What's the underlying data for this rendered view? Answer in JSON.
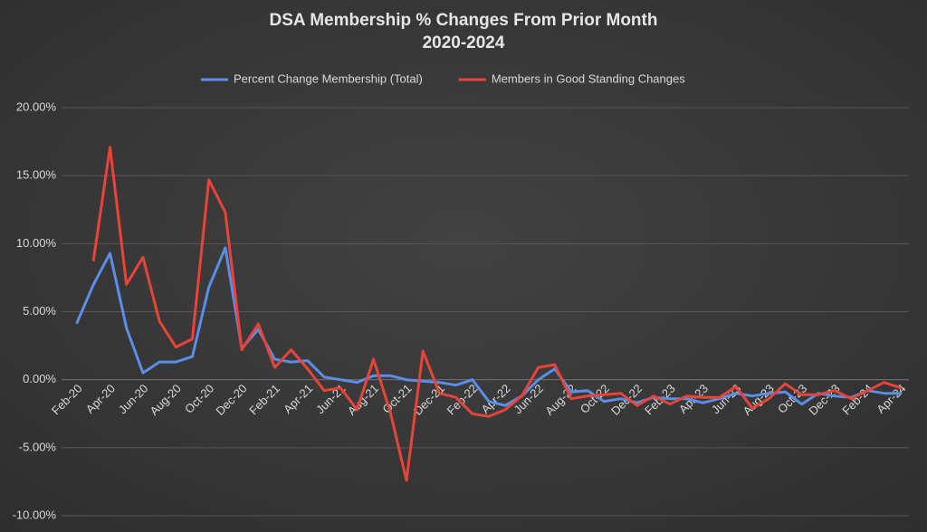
{
  "chart_data": {
    "type": "line",
    "title": "DSA Membership % Changes From Prior Month",
    "subtitle": "2020-2024",
    "categories": [
      "Feb-20",
      null,
      "Apr-20",
      null,
      "Jun-20",
      null,
      "Aug-20",
      null,
      "Oct-20",
      null,
      "Dec-20",
      null,
      "Feb-21",
      null,
      "Apr-21",
      null,
      "Jun-21",
      null,
      "Aug-21",
      null,
      "Oct-21",
      null,
      "Dec-21",
      null,
      "Feb-22",
      null,
      "Apr-22",
      null,
      "Jun-22",
      null,
      "Aug-22",
      null,
      "Oct-22",
      null,
      "Dec-22",
      null,
      "Feb-23",
      null,
      "Apr-23",
      null,
      "Jun-23",
      null,
      "Aug-23",
      null,
      "Oct-23",
      null,
      "Dec-23",
      null,
      "Feb-24",
      null,
      "Apr-24"
    ],
    "series": [
      {
        "name": "Percent Change Membership (Total)",
        "color": "#5b8ee6",
        "values": [
          4.2,
          7.0,
          9.3,
          3.8,
          0.5,
          1.3,
          1.3,
          1.7,
          6.8,
          9.7,
          2.3,
          3.7,
          1.5,
          1.3,
          1.4,
          0.2,
          0.0,
          -0.2,
          0.3,
          0.3,
          0.0,
          -0.1,
          -0.2,
          -0.4,
          0.0,
          -1.6,
          -1.9,
          -1.2,
          0.0,
          0.8,
          -0.9,
          -0.8,
          -1.6,
          -1.4,
          -1.7,
          -1.3,
          -1.4,
          -1.4,
          -1.7,
          -1.4,
          -1.0,
          -1.2,
          -1.0,
          -0.9,
          -1.8,
          -1.0,
          -1.2,
          -1.3,
          -0.8,
          -1.0,
          -1.0
        ]
      },
      {
        "name": "Members in Good Standing Changes",
        "color": "#e8443a",
        "values": [
          null,
          8.8,
          17.1,
          7.0,
          9.0,
          4.3,
          2.4,
          3.0,
          14.7,
          12.3,
          2.2,
          4.1,
          0.9,
          2.2,
          0.8,
          -0.8,
          -0.6,
          -2.2,
          1.5,
          -2.3,
          -7.4,
          2.1,
          -1.0,
          -1.3,
          -2.5,
          -2.7,
          -2.2,
          -1.2,
          0.9,
          1.1,
          -1.4,
          -1.2,
          -1.1,
          -1.0,
          -1.9,
          -1.2,
          -1.8,
          -1.2,
          -1.3,
          -1.3,
          -0.5,
          -2.1,
          -1.4,
          -0.3,
          -1.1,
          -1.1,
          -0.8,
          -1.4,
          -0.8,
          -0.2,
          -0.6
        ]
      }
    ],
    "ylim": [
      -10,
      20
    ],
    "yticks": [
      {
        "value": -10,
        "label": "-10.00%"
      },
      {
        "value": -5,
        "label": "-5.00%"
      },
      {
        "value": 0,
        "label": "0.00%"
      },
      {
        "value": 5,
        "label": "5.00%"
      },
      {
        "value": 10,
        "label": "10.00%"
      },
      {
        "value": 15,
        "label": "15.00%"
      },
      {
        "value": 20,
        "label": "20.00%"
      }
    ],
    "grid": true,
    "legend": "top"
  }
}
